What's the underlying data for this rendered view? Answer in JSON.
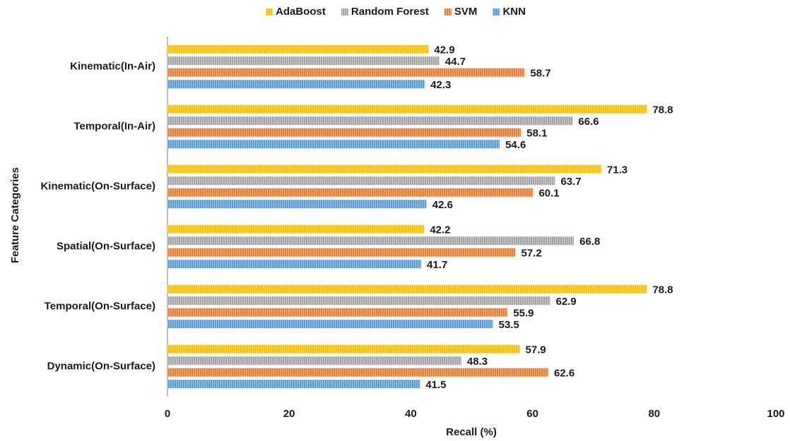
{
  "chart_data": {
    "type": "hbar",
    "categories": [
      "Kinematic(In-Air)",
      "Temporal(In-Air)",
      "Kinematic(On-Surface)",
      "Spatial(On-Surface)",
      "Temporal(On-Surface)",
      "Dynamic(On-Surface)"
    ],
    "series": [
      {
        "name": "AdaBoost",
        "color": "#ffc000",
        "values": [
          42.9,
          78.8,
          71.3,
          42.2,
          78.8,
          57.9
        ]
      },
      {
        "name": "Random Forest",
        "color": "#a5a5a5",
        "values": [
          44.7,
          66.6,
          63.7,
          66.8,
          62.9,
          48.3
        ]
      },
      {
        "name": "SVM",
        "color": "#ed7d31",
        "values": [
          58.7,
          58.1,
          60.1,
          57.2,
          55.9,
          62.6
        ]
      },
      {
        "name": "KNN",
        "color": "#5b9bd5",
        "values": [
          42.3,
          54.6,
          42.6,
          41.7,
          53.5,
          41.5
        ]
      }
    ],
    "xlabel": "Recall (%)",
    "ylabel": "Feature Categories",
    "xlim": [
      0,
      100
    ],
    "xticks": [
      0,
      20,
      40,
      60,
      80,
      100
    ],
    "grid": false,
    "legend": "top"
  }
}
